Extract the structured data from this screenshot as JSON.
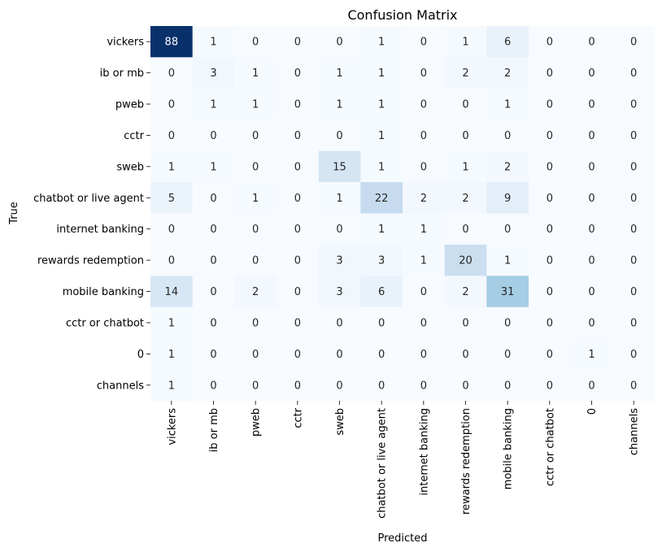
{
  "chart_data": {
    "type": "heatmap",
    "title": "Confusion Matrix",
    "xlabel": "Predicted",
    "ylabel": "True",
    "row_labels": [
      "vickers",
      "ib or mb",
      "pweb",
      "cctr",
      "sweb",
      "chatbot or live agent",
      "internet banking",
      "rewards redemption",
      "mobile banking",
      "cctr or chatbot",
      "0",
      "channels"
    ],
    "col_labels": [
      "vickers",
      "ib or mb",
      "pweb",
      "cctr",
      "sweb",
      "chatbot or live agent",
      "internet banking",
      "rewards redemption",
      "mobile banking",
      "cctr or chatbot",
      "0",
      "channels"
    ],
    "values": [
      [
        88,
        1,
        0,
        0,
        0,
        1,
        0,
        1,
        6,
        0,
        0,
        0
      ],
      [
        0,
        3,
        1,
        0,
        1,
        1,
        0,
        2,
        2,
        0,
        0,
        0
      ],
      [
        0,
        1,
        1,
        0,
        1,
        1,
        0,
        0,
        1,
        0,
        0,
        0
      ],
      [
        0,
        0,
        0,
        0,
        0,
        1,
        0,
        0,
        0,
        0,
        0,
        0
      ],
      [
        1,
        1,
        0,
        0,
        15,
        1,
        0,
        1,
        2,
        0,
        0,
        0
      ],
      [
        5,
        0,
        1,
        0,
        1,
        22,
        2,
        2,
        9,
        0,
        0,
        0
      ],
      [
        0,
        0,
        0,
        0,
        0,
        1,
        1,
        0,
        0,
        0,
        0,
        0
      ],
      [
        0,
        0,
        0,
        0,
        3,
        3,
        1,
        20,
        1,
        0,
        0,
        0
      ],
      [
        14,
        0,
        2,
        0,
        3,
        6,
        0,
        2,
        31,
        0,
        0,
        0
      ],
      [
        1,
        0,
        0,
        0,
        0,
        0,
        0,
        0,
        0,
        0,
        0,
        0
      ],
      [
        1,
        0,
        0,
        0,
        0,
        0,
        0,
        0,
        0,
        0,
        1,
        0
      ],
      [
        1,
        0,
        0,
        0,
        0,
        0,
        0,
        0,
        0,
        0,
        0,
        0
      ]
    ],
    "colormap": "Blues",
    "color_range": [
      0,
      88
    ],
    "colorbar": false,
    "grid": false
  }
}
